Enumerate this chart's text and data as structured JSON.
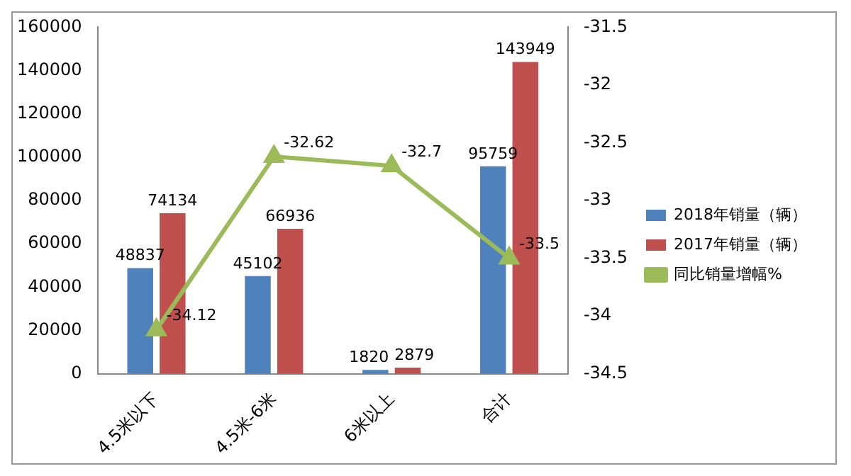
{
  "chart_data": {
    "type": "bar",
    "categories": [
      "4.5米以下",
      "4.5米-6米",
      "6米以上",
      "合计"
    ],
    "series": [
      {
        "name": "2018年销量（辆）",
        "color": "#4f81bd",
        "values": [
          48837,
          45102,
          1820,
          95759
        ]
      },
      {
        "name": "2017年销量（辆）",
        "color": "#c0504d",
        "values": [
          74134,
          66936,
          2879,
          143949
        ]
      },
      {
        "name": "同比销量增幅%",
        "type": "line",
        "axis": "y2",
        "color": "#9bbb59",
        "values": [
          -34.12,
          -32.62,
          -32.7,
          -33.5
        ],
        "marker": "triangle"
      }
    ],
    "ylim": [
      0,
      160000
    ],
    "yticks": [
      0,
      20000,
      40000,
      60000,
      80000,
      100000,
      120000,
      140000,
      160000
    ],
    "y2lim": [
      -34.5,
      -31.5
    ],
    "y2ticks": [
      -34.5,
      -34,
      -33.5,
      -33,
      -32.5,
      -32,
      -31.5
    ],
    "data_labels": true,
    "legend": "right",
    "grid": false
  }
}
